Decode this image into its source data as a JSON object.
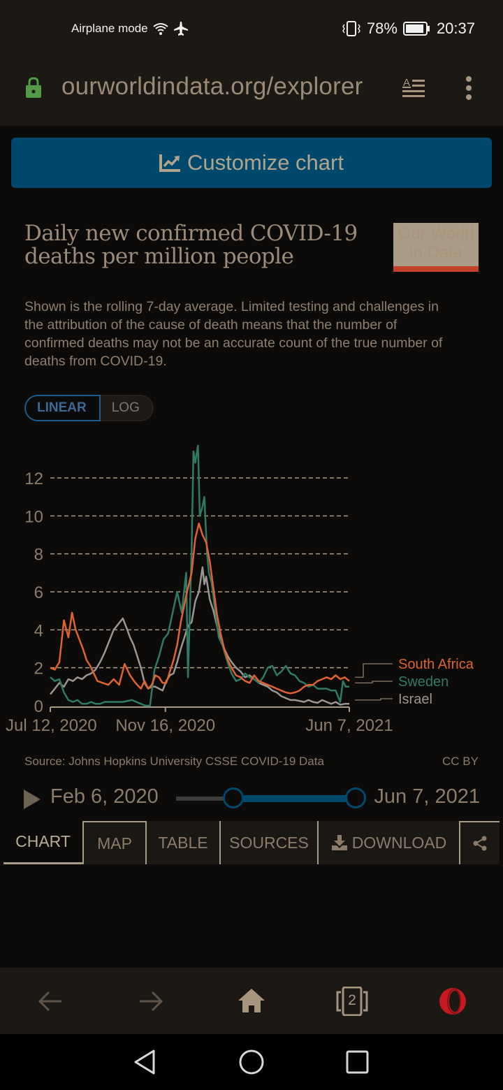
{
  "status_bar": {
    "airplane_label": "Airplane mode",
    "battery": "78%",
    "time": "20:37",
    "icons": [
      "wifi-icon",
      "airplane-icon",
      "vibrate-icon",
      "battery-icon"
    ]
  },
  "browser": {
    "url": "ourworldindata.org/explorer",
    "icons": [
      "lock-icon",
      "reader-mode-icon",
      "menu-dots-icon"
    ]
  },
  "customize_button": {
    "label": "Customize chart",
    "icon": "chart-line-icon"
  },
  "header": {
    "title": "Daily new confirmed COVID-19 deaths per million people",
    "subtitle": "Shown is the rolling 7-day average. Limited testing and challenges in the attribution of the cause of death means that the number of confirmed deaths may not be an accurate count of the true number of deaths from COVID-19.",
    "logo_line1": "Our World",
    "logo_line2": "in Data"
  },
  "scale_toggle": {
    "options": [
      "LINEAR",
      "LOG"
    ],
    "selected": "LINEAR"
  },
  "footer": {
    "source": "Source: Johns Hopkins University CSSE COVID-19 Data",
    "license": "CC BY"
  },
  "timeline": {
    "start_label": "Feb 6, 2020",
    "end_label": "Jun 7, 2021",
    "selected_range_fraction": [
      0.33,
      1.0
    ]
  },
  "tabs": [
    {
      "label": "CHART",
      "active": true
    },
    {
      "label": "MAP",
      "active": false
    },
    {
      "label": "TABLE",
      "active": false
    },
    {
      "label": "SOURCES",
      "active": false
    },
    {
      "label": "DOWNLOAD",
      "active": false,
      "icon": "download-icon"
    },
    {
      "label": "",
      "active": false,
      "icon": "share-icon"
    }
  ],
  "bottom_nav": {
    "tab_count": "2",
    "icons": [
      "back-arrow-icon",
      "forward-arrow-icon",
      "home-icon",
      "tabs-icon",
      "opera-icon"
    ]
  },
  "system_nav": {
    "icons": [
      "back-triangle-icon",
      "home-circle-icon",
      "recents-square-icon"
    ]
  },
  "chart_data": {
    "type": "line",
    "title": "Daily new confirmed COVID-19 deaths per million people",
    "xlabel": "",
    "ylabel": "",
    "ylim": [
      0,
      12
    ],
    "y_ticks": [
      0,
      2,
      4,
      6,
      8,
      10,
      12
    ],
    "x_ticks": [
      {
        "day": 0,
        "label": "Jul 12, 2020"
      },
      {
        "day": 127,
        "label": "Nov 16, 2020"
      },
      {
        "day": 330,
        "label": "Jun 7, 2021"
      }
    ],
    "x_unit": "days since Jul 12, 2020",
    "grid": "horizontal-dashed",
    "legend_placement": "right",
    "series": [
      {
        "name": "South Africa",
        "color": "#e0622f",
        "x": [
          0,
          5,
          10,
          15,
          20,
          24,
          28,
          32,
          36,
          40,
          44,
          48,
          52,
          58,
          64,
          70,
          76,
          82,
          88,
          94,
          100,
          104,
          108,
          112,
          116,
          120,
          124,
          128,
          132,
          136,
          140,
          144,
          150,
          156,
          160,
          164,
          168,
          172,
          176,
          180,
          184,
          188,
          192,
          196,
          200,
          205,
          210,
          215,
          220,
          225,
          230,
          235,
          240,
          245,
          250,
          255,
          260,
          265,
          270,
          275,
          280,
          285,
          290,
          295,
          300,
          305,
          310,
          315,
          320,
          325,
          330
        ],
        "y": [
          2.0,
          1.9,
          2.3,
          4.5,
          3.6,
          4.9,
          4.0,
          3.5,
          3.0,
          2.4,
          2.1,
          1.7,
          1.3,
          1.2,
          1.1,
          1.4,
          1.1,
          2.2,
          1.6,
          1.2,
          0.9,
          1.3,
          0.9,
          1.1,
          1.6,
          1.5,
          1.2,
          1.2,
          1.8,
          2.4,
          3.2,
          4.4,
          5.8,
          7.0,
          8.8,
          9.6,
          9.0,
          8.6,
          7.6,
          6.2,
          4.8,
          3.8,
          3.0,
          2.4,
          2.0,
          1.6,
          1.5,
          1.3,
          1.2,
          1.6,
          1.3,
          1.2,
          1.1,
          1.0,
          0.9,
          0.8,
          0.7,
          0.65,
          0.7,
          0.8,
          1.0,
          1.1,
          1.1,
          1.3,
          1.4,
          1.5,
          1.4,
          1.6,
          1.4,
          1.5,
          1.3
        ]
      },
      {
        "name": "Sweden",
        "color": "#2f7a65",
        "x": [
          0,
          5,
          10,
          15,
          20,
          25,
          30,
          35,
          40,
          45,
          50,
          55,
          60,
          70,
          80,
          90,
          100,
          105,
          110,
          115,
          120,
          125,
          130,
          135,
          140,
          145,
          150,
          152,
          156,
          158,
          160,
          163,
          165,
          168,
          170,
          173,
          175,
          178,
          182,
          186,
          190,
          195,
          200,
          205,
          210,
          215,
          220,
          225,
          230,
          235,
          240,
          245,
          250,
          255,
          260,
          265,
          270,
          275,
          280,
          285,
          290,
          295,
          300,
          305,
          310,
          315,
          320,
          323,
          326,
          330
        ],
        "y": [
          1.5,
          1.3,
          1.4,
          0.7,
          0.3,
          0.2,
          0.3,
          0.1,
          0.1,
          0.2,
          0.1,
          0.1,
          0.2,
          0.2,
          0.2,
          0.3,
          0.1,
          0.0,
          0.0,
          1.9,
          2.6,
          3.5,
          3.8,
          4.9,
          6.0,
          4.9,
          7.0,
          1.5,
          8.2,
          13.4,
          12.8,
          13.7,
          10.0,
          10.5,
          11.0,
          8.0,
          7.0,
          6.5,
          5.0,
          3.6,
          3.2,
          2.4,
          1.7,
          1.3,
          1.4,
          1.7,
          1.5,
          1.4,
          1.2,
          1.5,
          2.0,
          2.1,
          1.6,
          1.8,
          2.1,
          1.7,
          1.6,
          1.3,
          1.2,
          1.0,
          1.1,
          0.9,
          0.9,
          0.9,
          0.8,
          0.8,
          0.2,
          1.3,
          1.0,
          1.0
        ]
      },
      {
        "name": "Israel",
        "color": "#9b9691",
        "x": [
          0,
          5,
          10,
          15,
          20,
          25,
          30,
          35,
          40,
          45,
          50,
          55,
          60,
          65,
          70,
          75,
          80,
          85,
          88,
          92,
          96,
          100,
          104,
          108,
          112,
          116,
          120,
          124,
          128,
          132,
          136,
          140,
          144,
          148,
          152,
          156,
          160,
          164,
          168,
          170,
          172,
          176,
          180,
          184,
          188,
          192,
          196,
          200,
          205,
          210,
          215,
          220,
          225,
          230,
          235,
          240,
          245,
          250,
          255,
          260,
          265,
          270,
          275,
          280,
          285,
          290,
          295,
          300,
          305,
          310,
          315,
          320,
          325,
          330
        ],
        "y": [
          0.6,
          0.9,
          1.2,
          1.0,
          1.4,
          1.3,
          1.5,
          1.4,
          1.6,
          1.7,
          1.9,
          2.3,
          2.8,
          3.4,
          4.0,
          4.3,
          4.6,
          4.0,
          3.6,
          3.2,
          2.6,
          2.0,
          1.2,
          0.9,
          1.0,
          1.0,
          0.9,
          0.8,
          1.3,
          1.6,
          1.7,
          2.3,
          3.0,
          3.6,
          4.2,
          4.4,
          5.5,
          6.0,
          7.3,
          6.4,
          6.8,
          5.6,
          5.0,
          4.2,
          3.4,
          3.0,
          2.6,
          2.3,
          2.0,
          1.8,
          1.5,
          1.6,
          1.4,
          1.2,
          1.1,
          1.0,
          0.8,
          0.7,
          0.5,
          0.4,
          0.3,
          0.3,
          0.25,
          0.2,
          0.3,
          0.2,
          0.15,
          0.3,
          0.2,
          0.1,
          0.2,
          0.05,
          0.1,
          0.1
        ]
      }
    ]
  }
}
